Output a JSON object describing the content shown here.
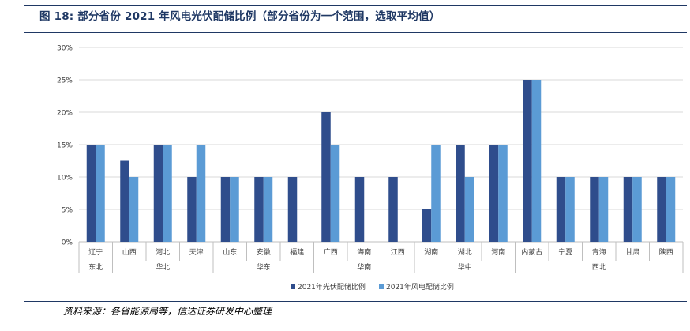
{
  "figure": {
    "title": "图 18:  部分省份 2021 年风电光伏配储比例（部分省份为一个范围，选取平均值）",
    "source": "资料来源：各省能源局等，信达证券研发中心整理"
  },
  "colors": {
    "pv": "#2f4d8c",
    "wind": "#5b9bd5",
    "grid": "#d9d9d9",
    "axis": "#bfbfbf",
    "title": "#1f3864"
  },
  "chart_data": {
    "type": "bar",
    "categories": [
      "辽宁",
      "山西",
      "河北",
      "天津",
      "山东",
      "安徽",
      "福建",
      "广西",
      "海南",
      "江西",
      "湖南",
      "湖北",
      "河南",
      "内蒙古",
      "宁夏",
      "青海",
      "甘肃",
      "陕西"
    ],
    "groups": [
      {
        "label": "东北",
        "count": 1
      },
      {
        "label": "华北",
        "count": 3
      },
      {
        "label": "华东",
        "count": 3
      },
      {
        "label": "华南",
        "count": 3
      },
      {
        "label": "华中",
        "count": 3
      },
      {
        "label": "西北",
        "count": 5
      }
    ],
    "series": [
      {
        "name": "2021年光伏配储比例",
        "values": [
          15,
          12.5,
          15,
          10,
          10,
          10,
          10,
          20,
          10,
          10,
          5,
          15,
          15,
          25,
          10,
          10,
          10,
          10
        ]
      },
      {
        "name": "2021年风电配储比例",
        "values": [
          15,
          10,
          15,
          15,
          10,
          10,
          null,
          15,
          null,
          null,
          15,
          10,
          15,
          25,
          10,
          10,
          10,
          10
        ]
      }
    ],
    "ylim": [
      0,
      30
    ],
    "yticks": [
      0,
      5,
      10,
      15,
      20,
      25,
      30
    ],
    "y_tick_format": "percent",
    "grid": true,
    "legend_position": "bottom-center"
  }
}
